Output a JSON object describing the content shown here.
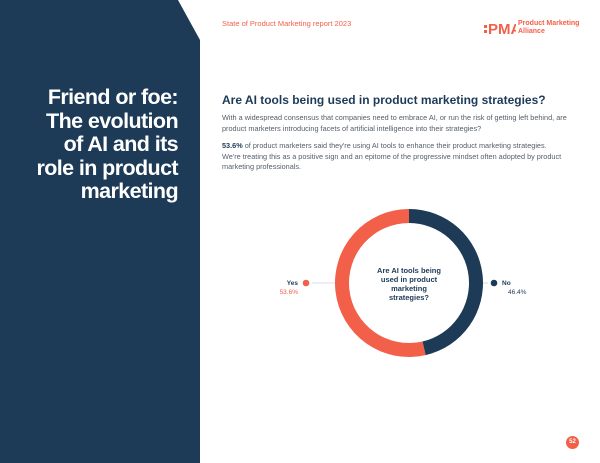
{
  "sidebar": {
    "title_lines": [
      "Friend or foe:",
      "The evolution",
      "of AI and its",
      "role in product",
      "marketing"
    ]
  },
  "header": {
    "report_title": "State of Product Marketing report 2023",
    "logo": {
      "mark": "PMA",
      "name": "Product Marketing Alliance"
    }
  },
  "main": {
    "question": "Are AI tools being used in product marketing strategies?",
    "para1": "With a widespread consensus that companies need to embrace AI, or run the risk of getting left behind, are product marketers introducing facets of artificial intelligence into their strategies?",
    "para2_stat": "53.6%",
    "para2_rest": " of product marketers said they're using AI tools to enhance their product marketing strategies. We're treating this as a positive sign and an epitome of the progressive mindset often adopted by product marketing professionals."
  },
  "colors": {
    "navy": "#1d3a57",
    "coral": "#f2604a"
  },
  "chart_data": {
    "type": "pie",
    "donut": true,
    "title": "Are AI tools being used in product marketing strategies?",
    "center_lines": [
      "Are AI tools being",
      "used in product",
      "marketing",
      "strategies?"
    ],
    "slices": [
      {
        "label": "Yes",
        "value": 53.6,
        "display": "53.6%",
        "color": "#f2604a"
      },
      {
        "label": "No",
        "value": 46.4,
        "display": "46.4%",
        "color": "#1d3a57"
      }
    ]
  },
  "footer": {
    "page_number": "52"
  }
}
